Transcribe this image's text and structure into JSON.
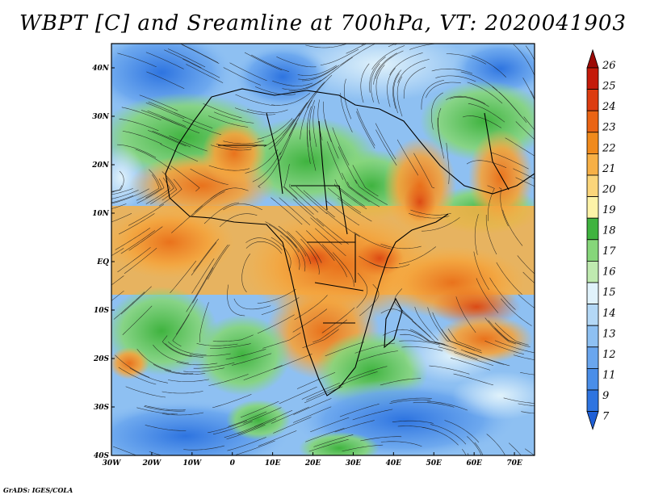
{
  "title": "WBPT [C] and Sreamline at 700hPa, VT: 2020041903",
  "credit": "GrADS: IGES/COLA",
  "map": {
    "lon_range": [
      -30,
      75
    ],
    "lat_range": [
      -40,
      45
    ],
    "lat_ticks": [
      "40N",
      "30N",
      "20N",
      "10N",
      "EQ",
      "10S",
      "20S",
      "30S",
      "40S"
    ],
    "lon_ticks": [
      "30W",
      "20W",
      "10W",
      "0",
      "10E",
      "20E",
      "30E",
      "40E",
      "50E",
      "60E",
      "70E"
    ]
  },
  "colorbar": {
    "labels": [
      "7",
      "9",
      "11",
      "12",
      "13",
      "14",
      "15",
      "16",
      "17",
      "18",
      "19",
      "20",
      "21",
      "22",
      "23",
      "24",
      "25",
      "26"
    ],
    "colors": [
      "#1f5fd6",
      "#2e74e0",
      "#4a8ee8",
      "#6aa6ee",
      "#8ec0f2",
      "#b4d8f6",
      "#e0f2fb",
      "#bfeab0",
      "#86d67a",
      "#3fb33f",
      "#fdf3a8",
      "#fbd57a",
      "#f7b046",
      "#f08a1c",
      "#ea6414",
      "#dc3c10",
      "#c41a0a",
      "#9c0a06"
    ]
  }
}
